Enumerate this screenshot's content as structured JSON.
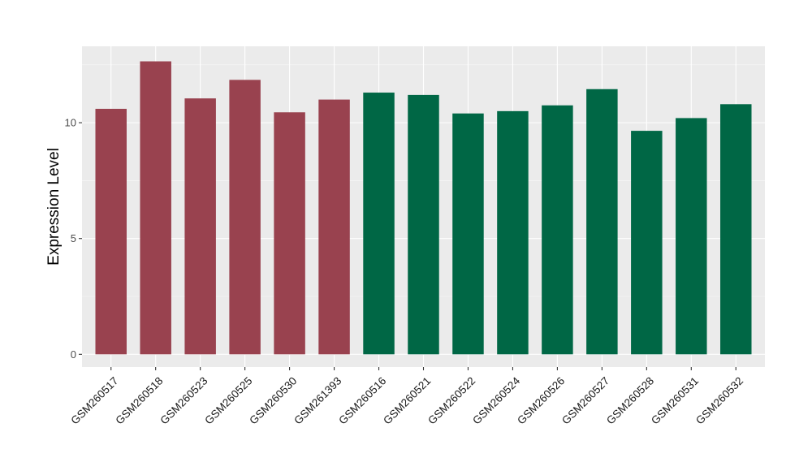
{
  "chart_data": {
    "type": "bar",
    "title": "",
    "xlabel": "",
    "ylabel": "Expression Level",
    "ylim": [
      -0.55,
      13.3
    ],
    "yticks": [
      0,
      5,
      10
    ],
    "grid": true,
    "legend": "none",
    "categories": [
      "GSM260517",
      "GSM260518",
      "GSM260523",
      "GSM260525",
      "GSM260530",
      "GSM261393",
      "GSM260516",
      "GSM260521",
      "GSM260522",
      "GSM260524",
      "GSM260526",
      "GSM260527",
      "GSM260528",
      "GSM260531",
      "GSM260532"
    ],
    "values": [
      10.6,
      12.65,
      11.05,
      11.85,
      10.45,
      11.0,
      11.3,
      11.2,
      10.4,
      10.5,
      10.75,
      11.45,
      9.65,
      10.2,
      10.8
    ],
    "bar_colors": [
      "#99424f",
      "#99424f",
      "#99424f",
      "#99424f",
      "#99424f",
      "#99424f",
      "#006745",
      "#006745",
      "#006745",
      "#006745",
      "#006745",
      "#006745",
      "#006745",
      "#006745",
      "#006745"
    ],
    "panel_background": "#ebebeb",
    "gridline_color": "#ffffff"
  }
}
